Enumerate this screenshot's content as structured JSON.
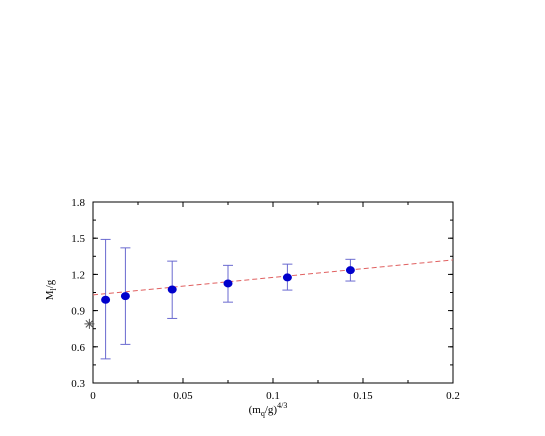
{
  "chart_data": {
    "type": "scatter",
    "xlabel": {
      "base": "(m",
      "sub": "q",
      "rest": "/g)",
      "sup": "4/3"
    },
    "ylabel": {
      "base": "M",
      "sub": "l",
      "rest": "/g"
    },
    "xlim": [
      0,
      0.2
    ],
    "ylim": [
      0.3,
      1.8
    ],
    "xticks": [
      0,
      0.05,
      0.1,
      0.15,
      0.2
    ],
    "xtick_labels": [
      "0",
      "0.05",
      "0.1",
      "0.15",
      "0.2"
    ],
    "yticks": [
      0.3,
      0.6,
      0.9,
      1.2,
      1.5,
      1.8
    ],
    "ytick_labels": [
      "0.3",
      "0.6",
      "0.9",
      "1.2",
      "1.5",
      "1.8"
    ],
    "grid": false,
    "legend": "none",
    "series": [
      {
        "points": [
          {
            "x": 0.007,
            "y": 0.99,
            "ylow": 0.5,
            "yhigh": 1.49
          },
          {
            "x": 0.018,
            "y": 1.02,
            "ylow": 0.62,
            "yhigh": 1.42
          },
          {
            "x": 0.044,
            "y": 1.075,
            "ylow": 0.835,
            "yhigh": 1.31
          },
          {
            "x": 0.075,
            "y": 1.125,
            "ylow": 0.97,
            "yhigh": 1.275
          },
          {
            "x": 0.108,
            "y": 1.175,
            "ylow": 1.07,
            "yhigh": 1.285
          },
          {
            "x": 0.143,
            "y": 1.235,
            "ylow": 1.145,
            "yhigh": 1.325
          }
        ],
        "color": "#0000cc",
        "errorbar_color": "#6a6ad0"
      }
    ],
    "fit_line": {
      "x": [
        0,
        0.2
      ],
      "y": [
        1.03,
        1.32
      ],
      "color": "#e06060",
      "style": "dashed"
    },
    "extra_marker": {
      "x": -0.002,
      "y": 0.79,
      "symbol": "asterisk",
      "color": "#555555"
    }
  }
}
